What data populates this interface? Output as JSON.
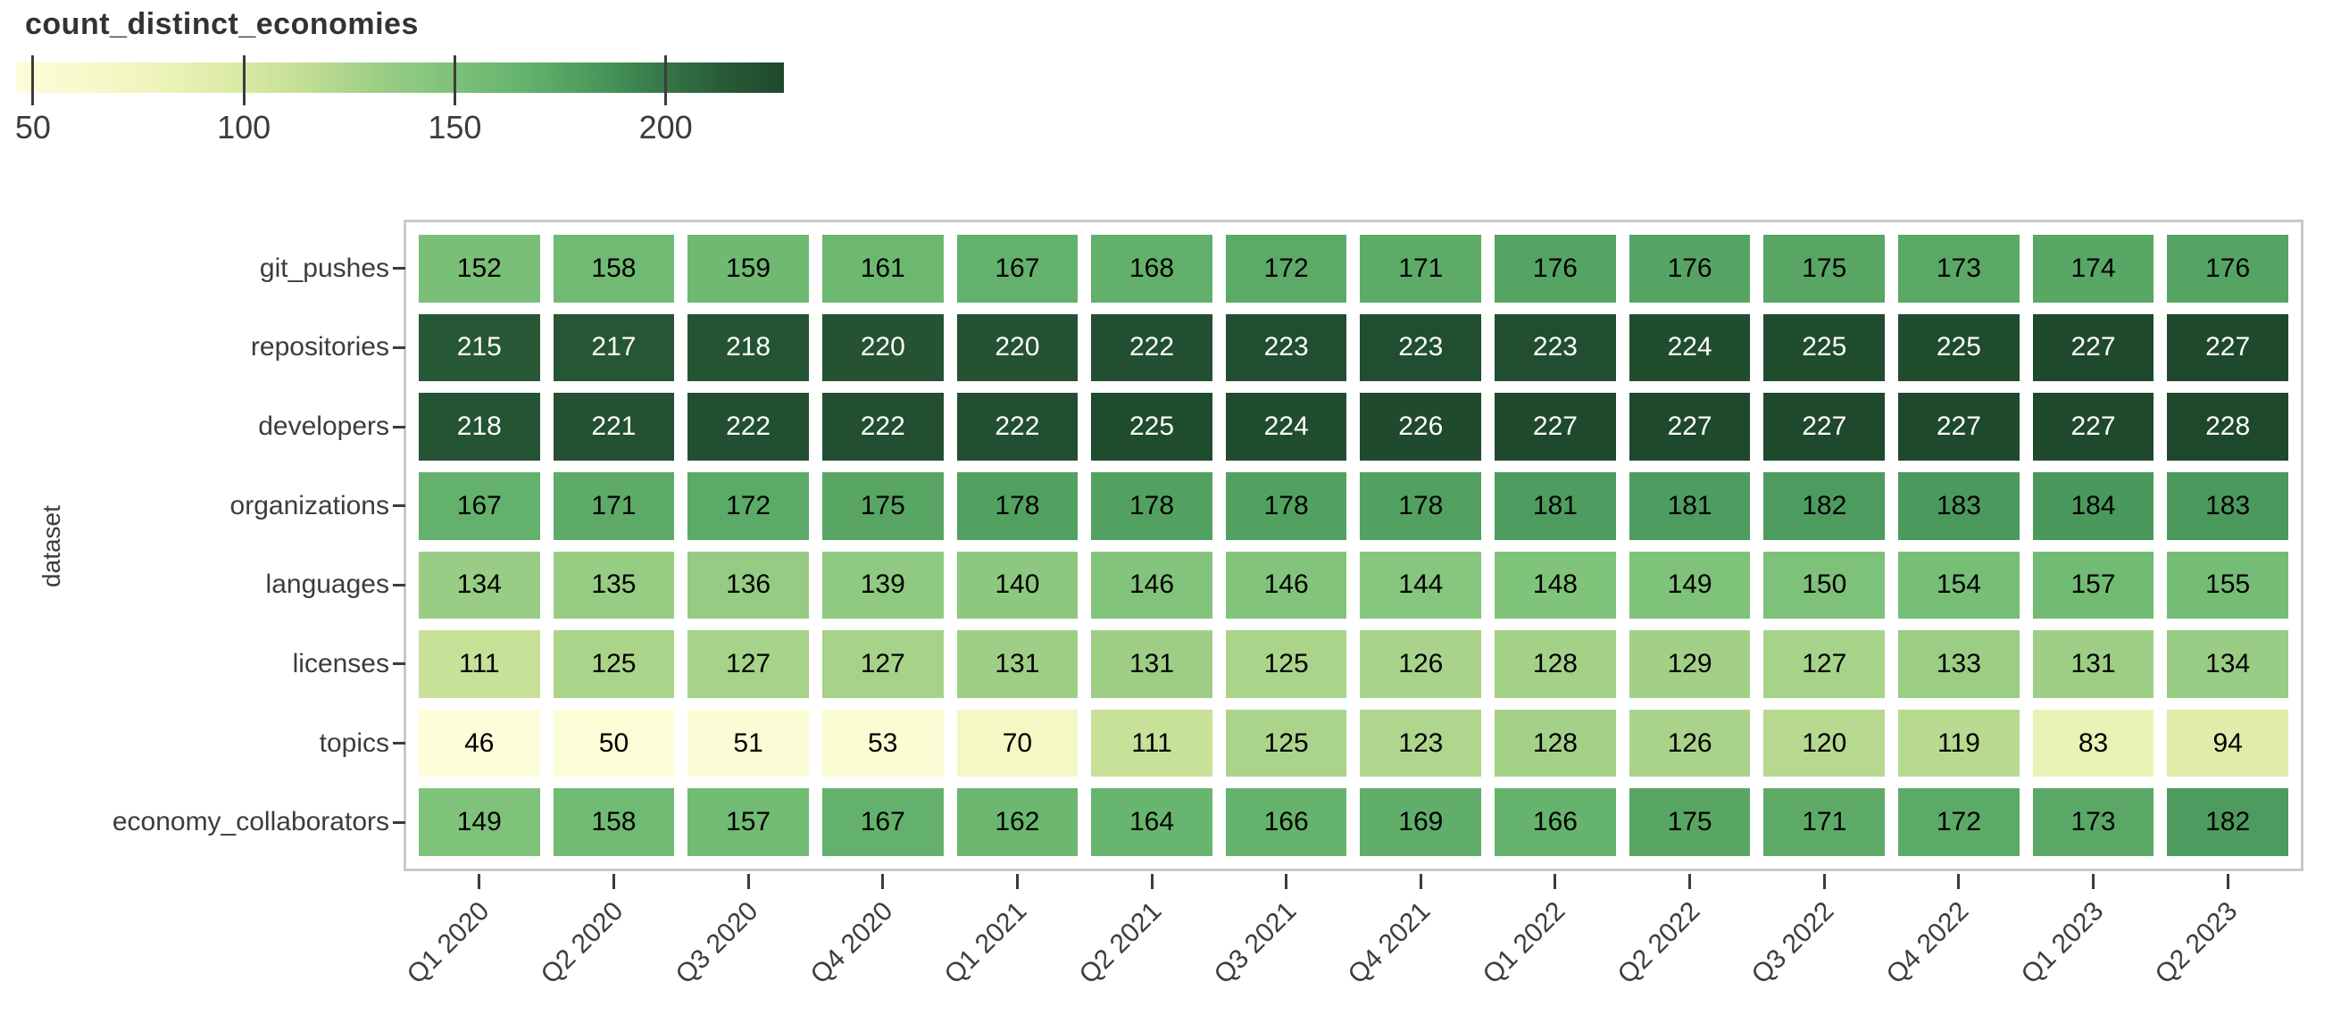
{
  "title": "count_distinct_economies",
  "colors": {
    "frame_border": "#c9c9c9",
    "tick_color": "#3c3c3c",
    "axis_text": "#3c3c3c",
    "title_text": "#333333",
    "cell_text_on_light": "#000000",
    "cell_text_on_dark": "#ffffff"
  },
  "chart_data": {
    "type": "heatmap",
    "title": "count_distinct_economies",
    "xlabel": "",
    "ylabel": "dataset",
    "x_categories": [
      "Q1 2020",
      "Q2 2020",
      "Q3 2020",
      "Q4 2020",
      "Q1 2021",
      "Q2 2021",
      "Q3 2021",
      "Q4 2021",
      "Q1 2022",
      "Q2 2022",
      "Q3 2022",
      "Q4 2022",
      "Q1 2023",
      "Q2 2023"
    ],
    "y_categories": [
      "git_pushes",
      "repositories",
      "developers",
      "organizations",
      "languages",
      "licenses",
      "topics",
      "economy_collaborators"
    ],
    "values": [
      [
        152,
        158,
        159,
        161,
        167,
        168,
        172,
        171,
        176,
        176,
        175,
        173,
        174,
        176
      ],
      [
        215,
        217,
        218,
        220,
        220,
        222,
        223,
        223,
        223,
        224,
        225,
        225,
        227,
        227
      ],
      [
        218,
        221,
        222,
        222,
        222,
        225,
        224,
        226,
        227,
        227,
        227,
        227,
        227,
        228
      ],
      [
        167,
        171,
        172,
        175,
        178,
        178,
        178,
        178,
        181,
        181,
        182,
        183,
        184,
        183
      ],
      [
        134,
        135,
        136,
        139,
        140,
        146,
        146,
        144,
        148,
        149,
        150,
        154,
        157,
        155
      ],
      [
        111,
        125,
        127,
        127,
        131,
        131,
        125,
        126,
        128,
        129,
        127,
        133,
        131,
        134
      ],
      [
        46,
        50,
        51,
        53,
        70,
        111,
        125,
        123,
        128,
        126,
        120,
        119,
        83,
        94
      ],
      [
        149,
        158,
        157,
        167,
        162,
        164,
        166,
        169,
        166,
        175,
        171,
        172,
        173,
        182
      ]
    ],
    "colorbar": {
      "label": "count_distinct_economies",
      "position": "top-left",
      "ticks": [
        50,
        100,
        150,
        200
      ],
      "domain": [
        46,
        228
      ],
      "colormap": "YlGn",
      "stops": [
        [
          46,
          "#fdfdda"
        ],
        [
          70,
          "#f5f7c4"
        ],
        [
          85,
          "#e9f1b3"
        ],
        [
          100,
          "#d8e9a4"
        ],
        [
          115,
          "#c1de94"
        ],
        [
          130,
          "#a0cf86"
        ],
        [
          145,
          "#85c57d"
        ],
        [
          155,
          "#75bd76"
        ],
        [
          165,
          "#66b46e"
        ],
        [
          175,
          "#58a564"
        ],
        [
          185,
          "#48965b"
        ],
        [
          200,
          "#347646"
        ],
        [
          215,
          "#275836"
        ],
        [
          228,
          "#1e482c"
        ]
      ]
    },
    "value_text_white_threshold": 200,
    "legend_position": "top-left",
    "grid": false
  }
}
